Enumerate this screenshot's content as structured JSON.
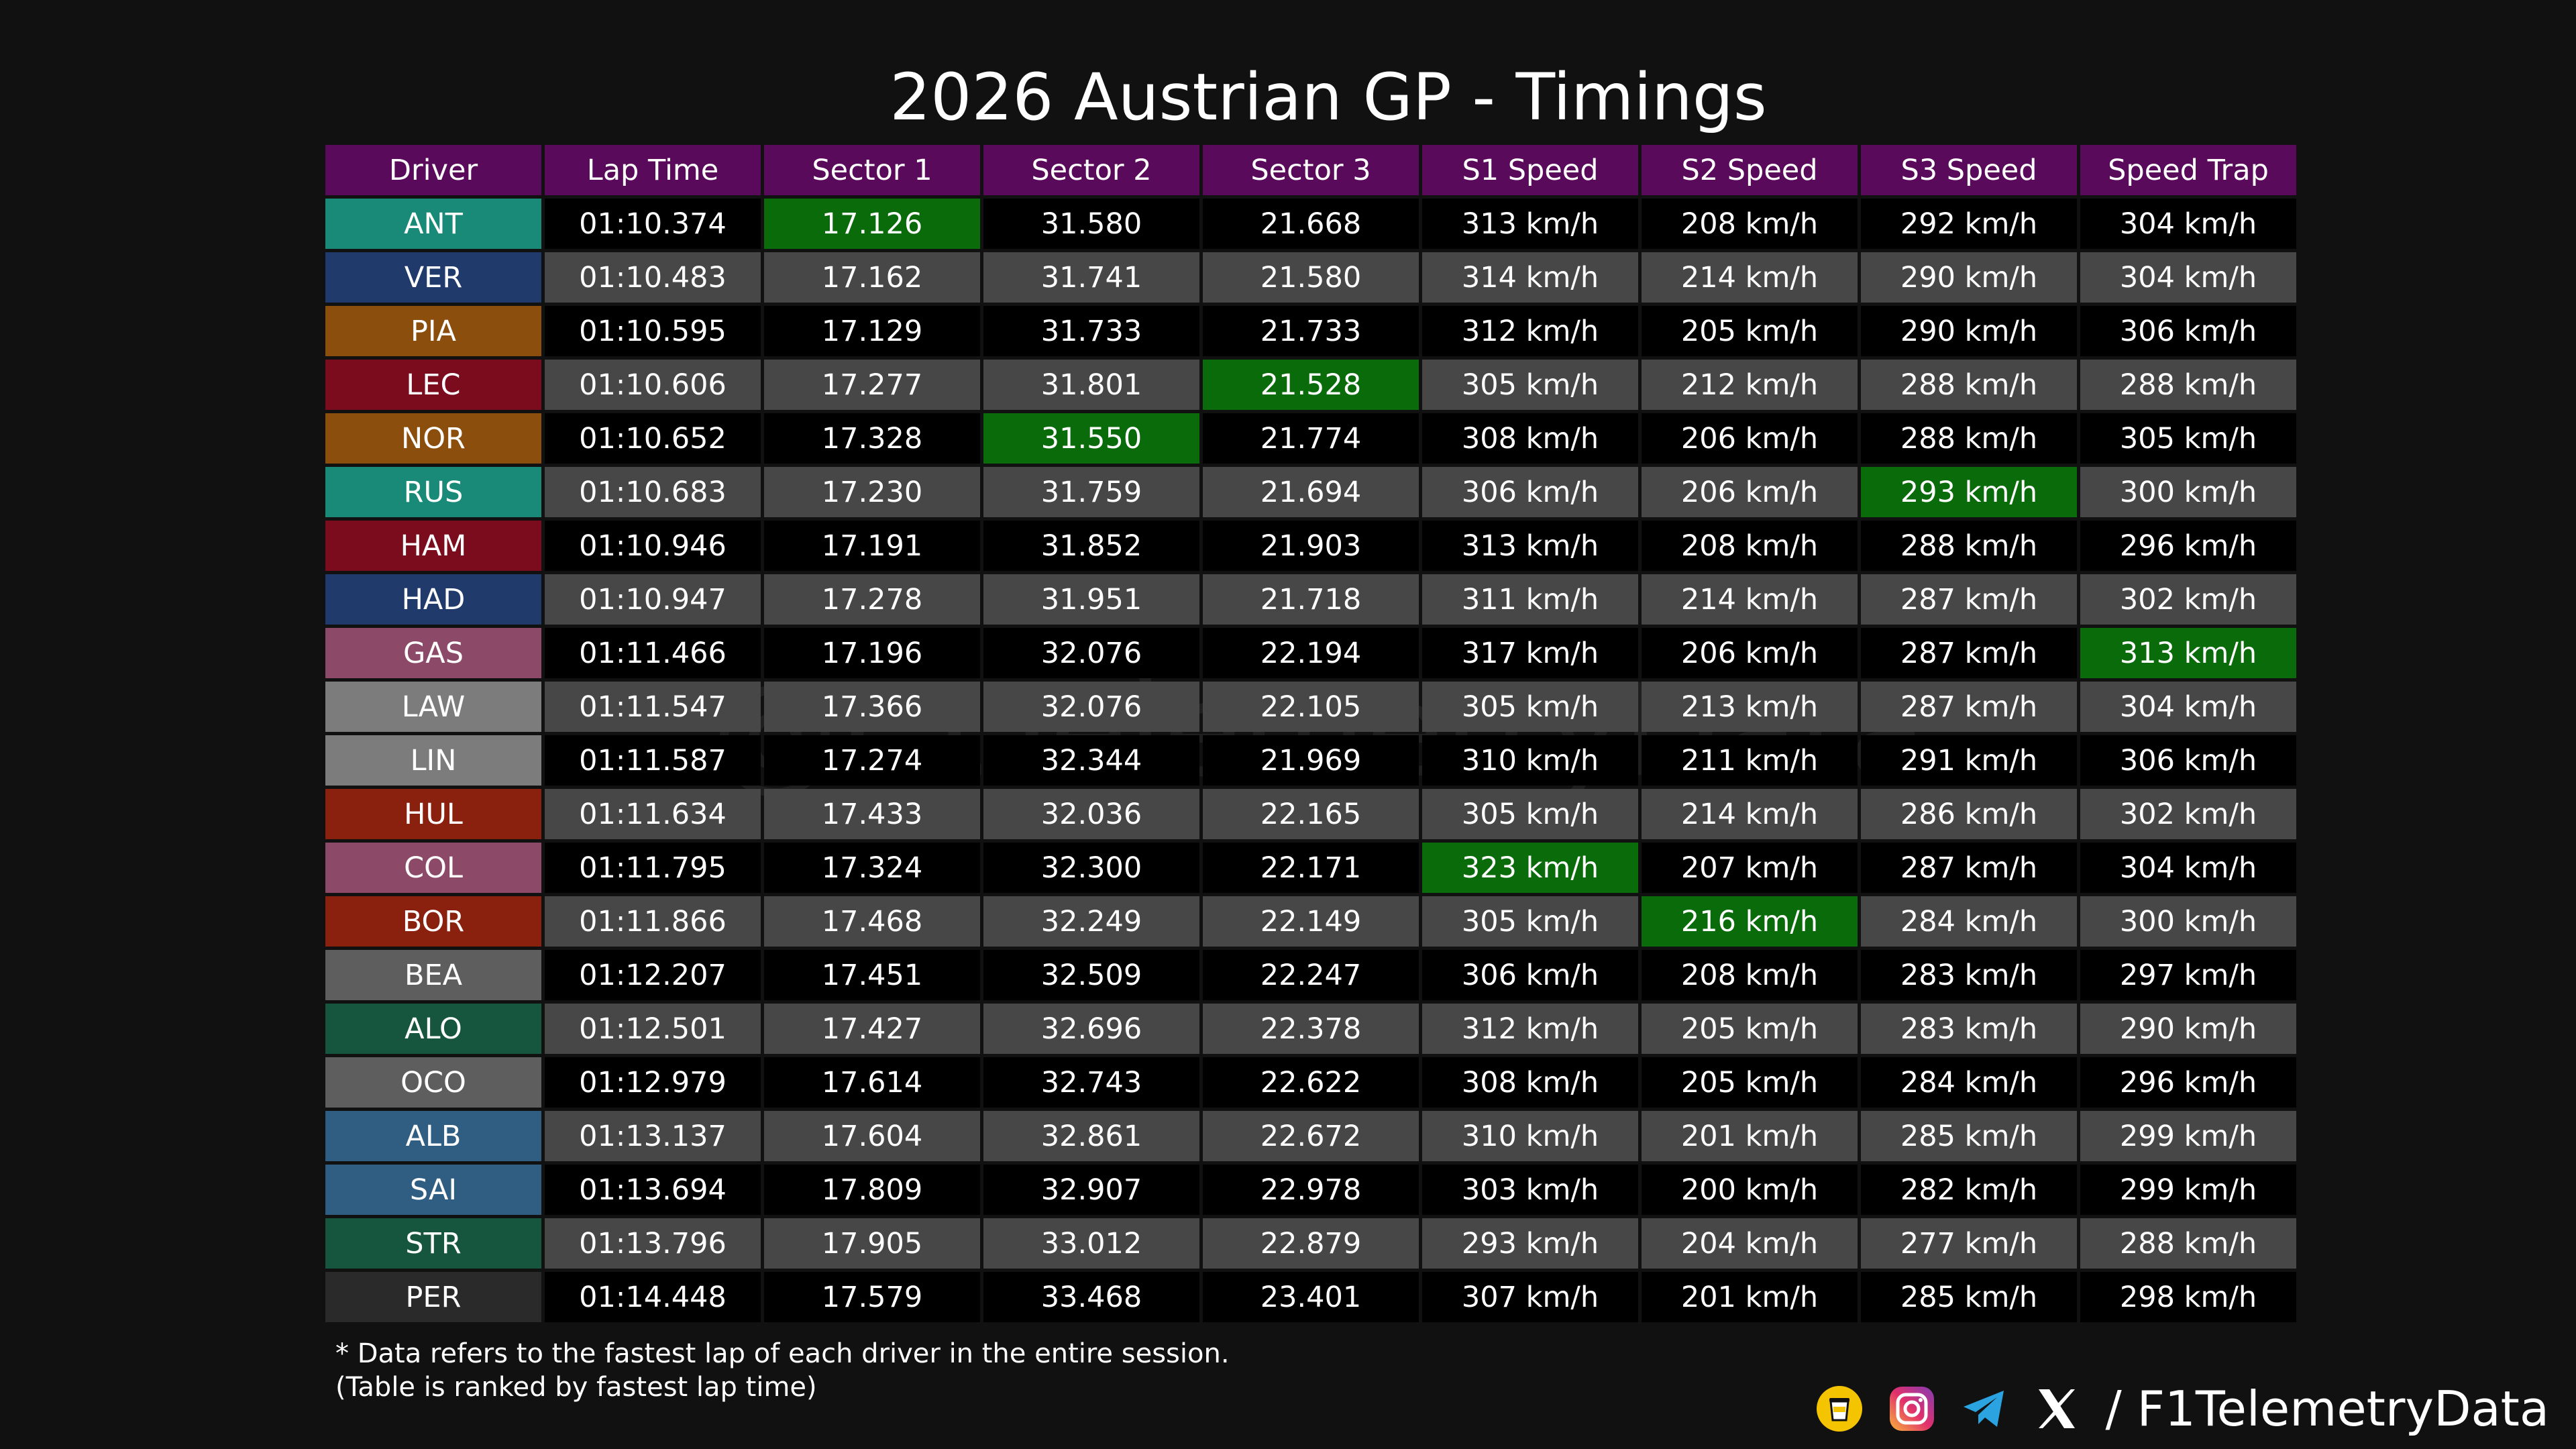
{
  "title": "2026 Austrian GP - Timings",
  "watermark": "@F1TelemetryData",
  "notes": {
    "line1": "* Data refers to the fastest lap of each driver in the entire session.",
    "line2": "(Table is ranked by fastest lap time)"
  },
  "footer": {
    "handle": "/ F1TelemetryData",
    "icons": [
      "coffee-icon",
      "instagram-icon",
      "telegram-icon",
      "x-icon"
    ]
  },
  "colors": {
    "header": "#5a0a5a",
    "fastest": "#0a6b0a",
    "row_dark": "#000000",
    "row_light": "#474747"
  },
  "chart_data": {
    "type": "table",
    "title": "2026 Austrian GP - Timings",
    "columns": [
      "Driver",
      "Lap Time",
      "Sector 1",
      "Sector 2",
      "Sector 3",
      "S1 Speed",
      "S2 Speed",
      "S3 Speed",
      "Speed Trap"
    ],
    "rows": [
      {
        "driver": "ANT",
        "color": "#1a8a78",
        "cells": [
          "01:10.374",
          "17.126",
          "31.580",
          "21.668",
          "313 km/h",
          "208 km/h",
          "292 km/h",
          "304 km/h"
        ]
      },
      {
        "driver": "VER",
        "color": "#1f3a6b",
        "cells": [
          "01:10.483",
          "17.162",
          "31.741",
          "21.580",
          "314 km/h",
          "214 km/h",
          "290 km/h",
          "304 km/h"
        ]
      },
      {
        "driver": "PIA",
        "color": "#8c4e0c",
        "cells": [
          "01:10.595",
          "17.129",
          "31.733",
          "21.733",
          "312 km/h",
          "205 km/h",
          "290 km/h",
          "306 km/h"
        ]
      },
      {
        "driver": "LEC",
        "color": "#7a0c1e",
        "cells": [
          "01:10.606",
          "17.277",
          "31.801",
          "21.528",
          "305 km/h",
          "212 km/h",
          "288 km/h",
          "288 km/h"
        ]
      },
      {
        "driver": "NOR",
        "color": "#8c4e0c",
        "cells": [
          "01:10.652",
          "17.328",
          "31.550",
          "21.774",
          "308 km/h",
          "206 km/h",
          "288 km/h",
          "305 km/h"
        ]
      },
      {
        "driver": "RUS",
        "color": "#1a8a78",
        "cells": [
          "01:10.683",
          "17.230",
          "31.759",
          "21.694",
          "306 km/h",
          "206 km/h",
          "293 km/h",
          "300 km/h"
        ]
      },
      {
        "driver": "HAM",
        "color": "#7a0c1e",
        "cells": [
          "01:10.946",
          "17.191",
          "31.852",
          "21.903",
          "313 km/h",
          "208 km/h",
          "288 km/h",
          "296 km/h"
        ]
      },
      {
        "driver": "HAD",
        "color": "#1f3a6b",
        "cells": [
          "01:10.947",
          "17.278",
          "31.951",
          "21.718",
          "311 km/h",
          "214 km/h",
          "287 km/h",
          "302 km/h"
        ]
      },
      {
        "driver": "GAS",
        "color": "#8c4a68",
        "cells": [
          "01:11.466",
          "17.196",
          "32.076",
          "22.194",
          "317 km/h",
          "206 km/h",
          "287 km/h",
          "313 km/h"
        ]
      },
      {
        "driver": "LAW",
        "color": "#7c7c7c",
        "cells": [
          "01:11.547",
          "17.366",
          "32.076",
          "22.105",
          "305 km/h",
          "213 km/h",
          "287 km/h",
          "304 km/h"
        ]
      },
      {
        "driver": "LIN",
        "color": "#7c7c7c",
        "cells": [
          "01:11.587",
          "17.274",
          "32.344",
          "21.969",
          "310 km/h",
          "211 km/h",
          "291 km/h",
          "306 km/h"
        ]
      },
      {
        "driver": "HUL",
        "color": "#8a200e",
        "cells": [
          "01:11.634",
          "17.433",
          "32.036",
          "22.165",
          "305 km/h",
          "214 km/h",
          "286 km/h",
          "302 km/h"
        ]
      },
      {
        "driver": "COL",
        "color": "#8c4a68",
        "cells": [
          "01:11.795",
          "17.324",
          "32.300",
          "22.171",
          "323 km/h",
          "207 km/h",
          "287 km/h",
          "304 km/h"
        ]
      },
      {
        "driver": "BOR",
        "color": "#8a200e",
        "cells": [
          "01:11.866",
          "17.468",
          "32.249",
          "22.149",
          "305 km/h",
          "216 km/h",
          "284 km/h",
          "300 km/h"
        ]
      },
      {
        "driver": "BEA",
        "color": "#5e5e5e",
        "cells": [
          "01:12.207",
          "17.451",
          "32.509",
          "22.247",
          "306 km/h",
          "208 km/h",
          "283 km/h",
          "297 km/h"
        ]
      },
      {
        "driver": "ALO",
        "color": "#16553e",
        "cells": [
          "01:12.501",
          "17.427",
          "32.696",
          "22.378",
          "312 km/h",
          "205 km/h",
          "283 km/h",
          "290 km/h"
        ]
      },
      {
        "driver": "OCO",
        "color": "#5e5e5e",
        "cells": [
          "01:12.979",
          "17.614",
          "32.743",
          "22.622",
          "308 km/h",
          "205 km/h",
          "284 km/h",
          "296 km/h"
        ]
      },
      {
        "driver": "ALB",
        "color": "#2f5e82",
        "cells": [
          "01:13.137",
          "17.604",
          "32.861",
          "22.672",
          "310 km/h",
          "201 km/h",
          "285 km/h",
          "299 km/h"
        ]
      },
      {
        "driver": "SAI",
        "color": "#2f5e82",
        "cells": [
          "01:13.694",
          "17.809",
          "32.907",
          "22.978",
          "303 km/h",
          "200 km/h",
          "282 km/h",
          "299 km/h"
        ]
      },
      {
        "driver": "STR",
        "color": "#16553e",
        "cells": [
          "01:13.796",
          "17.905",
          "33.012",
          "22.879",
          "293 km/h",
          "204 km/h",
          "277 km/h",
          "288 km/h"
        ]
      },
      {
        "driver": "PER",
        "color": "#2a2a2a",
        "cells": [
          "01:14.448",
          "17.579",
          "33.468",
          "23.401",
          "307 km/h",
          "201 km/h",
          "285 km/h",
          "298 km/h"
        ]
      }
    ],
    "fastest": [
      {
        "row": 0,
        "col": 2
      },
      {
        "row": 4,
        "col": 3
      },
      {
        "row": 3,
        "col": 4
      },
      {
        "row": 12,
        "col": 5
      },
      {
        "row": 13,
        "col": 6
      },
      {
        "row": 5,
        "col": 7
      },
      {
        "row": 8,
        "col": 8
      }
    ]
  }
}
